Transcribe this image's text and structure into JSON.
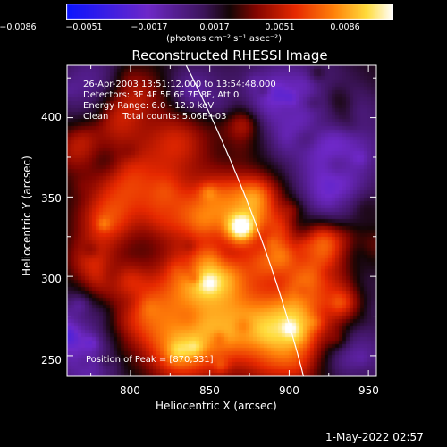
{
  "colorbar": {
    "tick_labels": [
      "−0.0086",
      "−0.0051",
      "−0.0017",
      "0.0017",
      "0.0051",
      "0.0086"
    ],
    "tick_values": [
      -0.0086,
      -0.0051,
      -0.0017,
      0.0017,
      0.0051,
      0.0086
    ],
    "units_label": "(photons cm⁻² s⁻¹ asec⁻²)",
    "range": [
      -0.0086,
      0.0086
    ]
  },
  "plot": {
    "title": "Reconstructed RHESSI Image",
    "info_lines": [
      "26-Apr-2003 13:51:12.000 to 13:54:48.000",
      "Detectors: 3F 4F 5F 6F 7F 8F, Att 0",
      "Energy Range: 6.0 - 12.0 keV",
      "Clean     Total counts: 5.06E+03"
    ],
    "peak_label": "Position of Peak = [870,331]",
    "peak": [
      870,
      331
    ],
    "x_axis": {
      "label": "Heliocentric X (arcsec)",
      "range": [
        760,
        955
      ],
      "ticks": [
        800,
        850,
        900,
        950
      ],
      "tick_labels": [
        "800",
        "850",
        "900",
        "950"
      ]
    },
    "y_axis": {
      "label": "Heliocentric Y (arcsec)",
      "range": [
        237,
        433
      ],
      "ticks": [
        250,
        300,
        350,
        400
      ],
      "tick_labels": [
        "250",
        "300",
        "350",
        "400"
      ]
    },
    "limb_color": "#ffffff"
  },
  "footer": {
    "date": "1-May-2022 02:57"
  }
}
